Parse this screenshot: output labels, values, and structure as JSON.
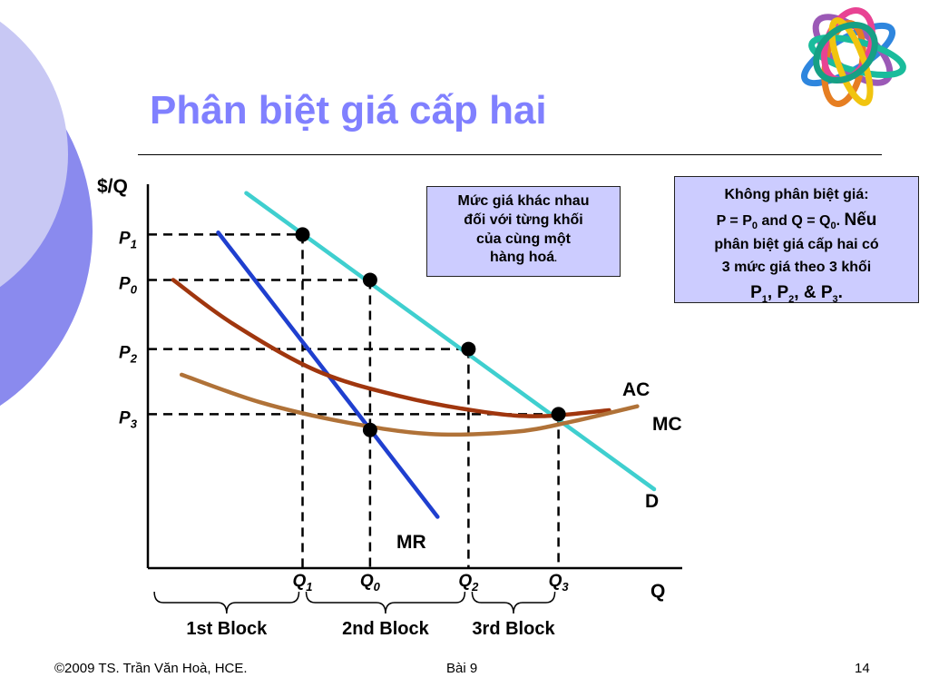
{
  "title": "Phân biệt giá cấp hai",
  "theme": {
    "title_color": "#8080ff",
    "deco_circle_outer": "#8a8aee",
    "deco_circle_inner": "#c8c8f4",
    "ring_colors": [
      "#2e86de",
      "#9b59b6",
      "#e67e22",
      "#1abc9c",
      "#e84393",
      "#f1c40f",
      "#16a085"
    ]
  },
  "note_left": {
    "lines": [
      "Mức giá khác nhau",
      "đối với từng khối",
      "của cùng một",
      "hàng hoá"
    ]
  },
  "note_right": {
    "line1": "Không phân biệt giá:",
    "line2_p": "P = P",
    "line2_sub1": "0",
    "line2_mid": " and Q = Q",
    "line2_sub2": "0",
    "line2_end": ". ",
    "line2_big": "Nếu",
    "line3": "phân biệt giá cấp hai có",
    "line4": "3 mức giá theo 3 khối",
    "line5_a": "P",
    "line5_s1": "1",
    "line5_b": ", P",
    "line5_s2": "2",
    "line5_c": ", & P",
    "line5_s3": "3",
    "line5_d": "."
  },
  "chart_data": {
    "type": "line",
    "y_axis_label": "$/Q",
    "x_axis_label": "Q",
    "x_range": [
      0,
      100
    ],
    "y_range": [
      0,
      100
    ],
    "price_levels": [
      {
        "name": "P",
        "sub": "1",
        "y": 84.5
      },
      {
        "name": "P",
        "sub": "0",
        "y": 73
      },
      {
        "name": "P",
        "sub": "2",
        "y": 55.5
      },
      {
        "name": "P",
        "sub": "3",
        "y": 39
      }
    ],
    "quantity_levels": [
      {
        "name": "Q",
        "sub": "1",
        "x": 27.5
      },
      {
        "name": "Q",
        "sub": "0",
        "x": 39.5
      },
      {
        "name": "Q",
        "sub": "2",
        "x": 57
      },
      {
        "name": "Q",
        "sub": "3",
        "x": 73
      }
    ],
    "series": [
      {
        "name": "D",
        "color": "#3fcfcf",
        "points": [
          [
            17.5,
            95
          ],
          [
            90,
            20
          ]
        ]
      },
      {
        "name": "MR",
        "color": "#1f3fcf",
        "points": [
          [
            12.5,
            85
          ],
          [
            51.5,
            13
          ]
        ]
      },
      {
        "name": "AC",
        "color": "#a0360e",
        "points": [
          [
            4.5,
            73
          ],
          [
            15,
            62
          ],
          [
            30,
            50
          ],
          [
            45,
            43.5
          ],
          [
            60,
            39.5
          ],
          [
            70,
            38.5
          ],
          [
            82,
            40
          ]
        ]
      },
      {
        "name": "MC",
        "color": "#b07238",
        "points": [
          [
            6,
            49
          ],
          [
            20,
            42
          ],
          [
            35,
            37
          ],
          [
            50,
            34
          ],
          [
            65,
            34.5
          ],
          [
            75,
            37
          ],
          [
            87,
            41
          ]
        ]
      }
    ],
    "points": [
      {
        "x": 27.5,
        "y": 84.5
      },
      {
        "x": 39.5,
        "y": 73
      },
      {
        "x": 57,
        "y": 55.5
      },
      {
        "x": 73,
        "y": 39
      },
      {
        "x": 39.5,
        "y": 35
      }
    ],
    "blocks": [
      {
        "label": "1st Block",
        "from": 0.5,
        "to": 27.5
      },
      {
        "label": "2nd Block",
        "from": 27.5,
        "to": 57
      },
      {
        "label": "3rd Block",
        "from": 57,
        "to": 73
      }
    ]
  },
  "footer": {
    "left": "©2009 TS. Trần Văn Hoà, HCE.",
    "center": "Bài 9",
    "right": "14"
  }
}
